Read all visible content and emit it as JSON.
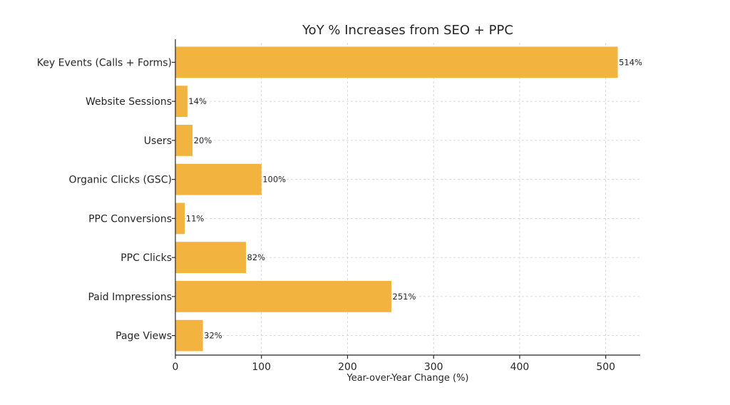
{
  "chart_data": {
    "type": "bar",
    "orientation": "horizontal",
    "title": "YoY % Increases from SEO + PPC",
    "xlabel": "Year-over-Year Change (%)",
    "ylabel": "",
    "xlim": [
      0,
      540
    ],
    "xticks": [
      0,
      100,
      200,
      300,
      400,
      500
    ],
    "xtick_labels": [
      "0",
      "100",
      "200",
      "300",
      "400",
      "500"
    ],
    "grid": true,
    "bar_color": "#F2B33F",
    "categories": [
      "Key Events (Calls + Forms)",
      "Website Sessions",
      "Users",
      "Organic Clicks (GSC)",
      "PPC Conversions",
      "PPC Clicks",
      "Paid Impressions",
      "Page Views"
    ],
    "values": [
      514,
      14,
      20,
      100,
      11,
      82,
      251,
      32
    ],
    "data_labels": [
      "514%",
      "14%",
      "20%",
      "100%",
      "11%",
      "82%",
      "251%",
      "32%"
    ]
  }
}
